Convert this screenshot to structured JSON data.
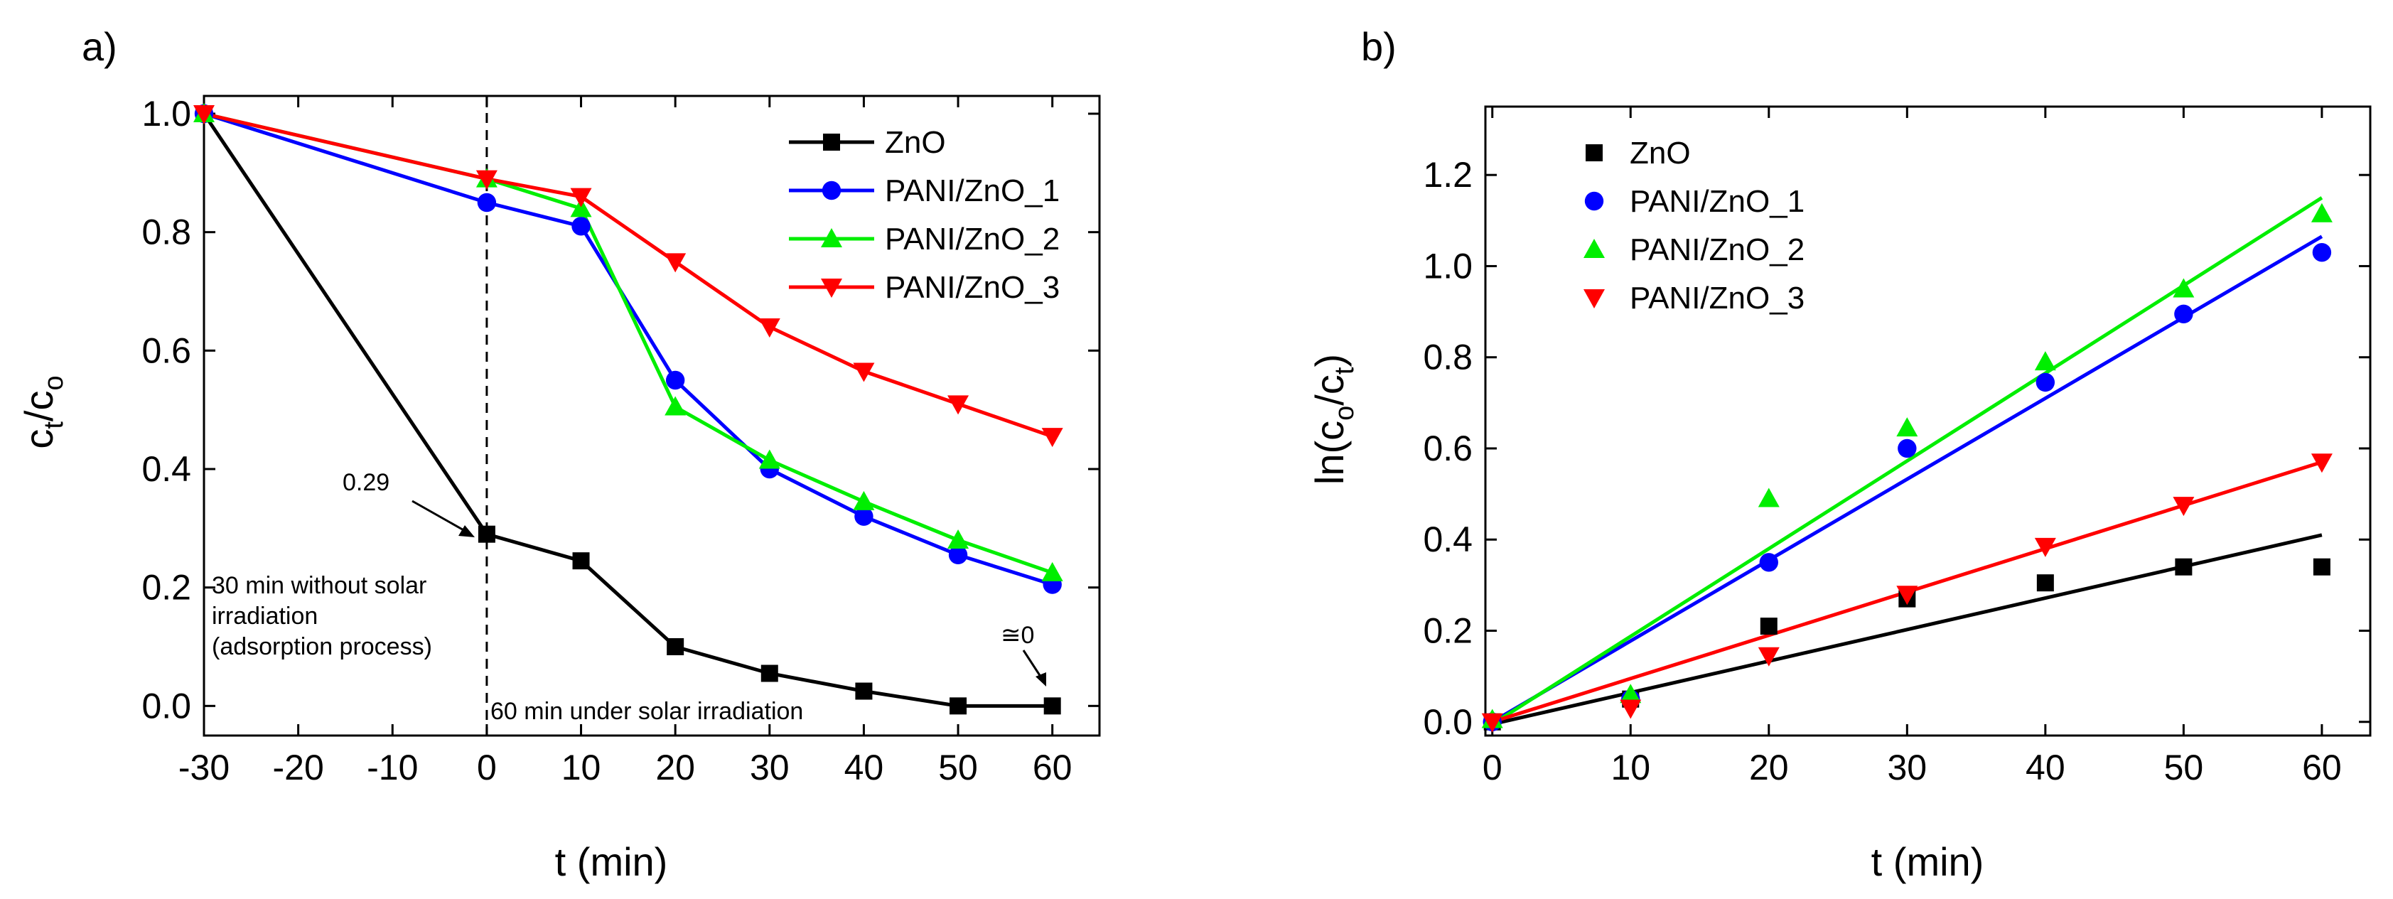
{
  "chart_data": [
    {
      "panel_label": "a)",
      "type": "line",
      "xlabel": "t (min)",
      "ylabel": {
        "main": "c",
        "sub1": "t",
        "sep": "/c",
        "sub2": "o"
      },
      "xlim": [
        -30,
        65
      ],
      "ylim": [
        -0.05,
        1.03
      ],
      "xticks": [
        -30,
        -20,
        -10,
        0,
        10,
        20,
        30,
        40,
        50,
        60
      ],
      "xtick_labels": [
        "-30",
        "-20",
        "-10",
        "0",
        "10",
        "20",
        "30",
        "40",
        "50",
        "60"
      ],
      "yticks": [
        0.0,
        0.2,
        0.4,
        0.6,
        0.8,
        1.0
      ],
      "ytick_labels": [
        "0.0",
        "0.2",
        "0.4",
        "0.6",
        "0.8",
        "1.0"
      ],
      "legend": "top-right",
      "divider_x": 0,
      "series": [
        {
          "name": "ZnO",
          "color": "#000000",
          "marker": "square",
          "x": [
            -30,
            0,
            10,
            20,
            30,
            40,
            50,
            60
          ],
          "y": [
            1.0,
            0.29,
            0.245,
            0.1,
            0.055,
            0.025,
            0.0,
            0.0
          ]
        },
        {
          "name": "PANI/ZnO_1",
          "color": "#0000ff",
          "marker": "circle",
          "x": [
            -30,
            0,
            10,
            20,
            30,
            40,
            50,
            60
          ],
          "y": [
            1.0,
            0.85,
            0.81,
            0.55,
            0.4,
            0.32,
            0.255,
            0.205
          ]
        },
        {
          "name": "PANI/ZnO_2",
          "color": "#00ee00",
          "marker": "triangle-up",
          "x": [
            -30,
            0,
            10,
            20,
            30,
            40,
            50,
            60
          ],
          "y": [
            1.0,
            0.89,
            0.84,
            0.505,
            0.415,
            0.345,
            0.28,
            0.225
          ]
        },
        {
          "name": "PANI/ZnO_3",
          "color": "#ff0000",
          "marker": "triangle-down",
          "x": [
            -30,
            0,
            10,
            20,
            30,
            40,
            50,
            60
          ],
          "y": [
            1.0,
            0.89,
            0.86,
            0.75,
            0.64,
            0.565,
            0.51,
            0.455
          ]
        }
      ],
      "annotations": {
        "value_029": "0.29",
        "approx_zero": "≅0",
        "dark_line1": "30 min without solar",
        "dark_line2": "irradiation",
        "dark_line3": "(adsorption process)",
        "light": "60 min under solar irradiation"
      }
    },
    {
      "panel_label": "b)",
      "type": "scatter",
      "xlabel": "t (min)",
      "ylabel": {
        "main": "ln(c",
        "sub1": "o",
        "sep": "/c",
        "sub2": "t",
        "end": ")"
      },
      "xlim": [
        -0.5,
        63.5
      ],
      "ylim": [
        -0.03,
        1.35
      ],
      "xticks": [
        0,
        10,
        20,
        30,
        40,
        50,
        60
      ],
      "xtick_labels": [
        "0",
        "10",
        "20",
        "30",
        "40",
        "50",
        "60"
      ],
      "yticks": [
        0.0,
        0.2,
        0.4,
        0.6,
        0.8,
        1.0,
        1.2
      ],
      "ytick_labels": [
        "0.0",
        "0.2",
        "0.4",
        "0.6",
        "0.8",
        "1.0",
        "1.2"
      ],
      "legend": "top-left",
      "series": [
        {
          "name": "ZnO",
          "color": "#000000",
          "marker": "square",
          "x": [
            0,
            10,
            20,
            30,
            40,
            50,
            60
          ],
          "y": [
            0.0,
            0.05,
            0.21,
            0.27,
            0.305,
            0.34,
            0.34
          ],
          "fit": [
            [
              0,
              -0.005
            ],
            [
              60,
              0.41
            ]
          ]
        },
        {
          "name": "PANI/ZnO_1",
          "color": "#0000ff",
          "marker": "circle",
          "x": [
            0,
            10,
            20,
            30,
            40,
            50,
            60
          ],
          "y": [
            0.0,
            0.05,
            0.35,
            0.6,
            0.745,
            0.895,
            1.03
          ],
          "fit": [
            [
              0,
              0.0
            ],
            [
              60,
              1.065
            ]
          ]
        },
        {
          "name": "PANI/ZnO_2",
          "color": "#00ee00",
          "marker": "triangle-up",
          "x": [
            0,
            10,
            20,
            30,
            40,
            50,
            60
          ],
          "y": [
            0.005,
            0.06,
            0.49,
            0.645,
            0.79,
            0.95,
            1.115
          ],
          "fit": [
            [
              0,
              -0.005
            ],
            [
              60,
              1.15
            ]
          ]
        },
        {
          "name": "PANI/ZnO_3",
          "color": "#ff0000",
          "marker": "triangle-down",
          "x": [
            0,
            10,
            20,
            30,
            40,
            50,
            60
          ],
          "y": [
            0.0,
            0.03,
            0.145,
            0.28,
            0.385,
            0.475,
            0.57
          ],
          "fit": [
            [
              0,
              0.0
            ],
            [
              60,
              0.57
            ]
          ]
        }
      ]
    }
  ]
}
